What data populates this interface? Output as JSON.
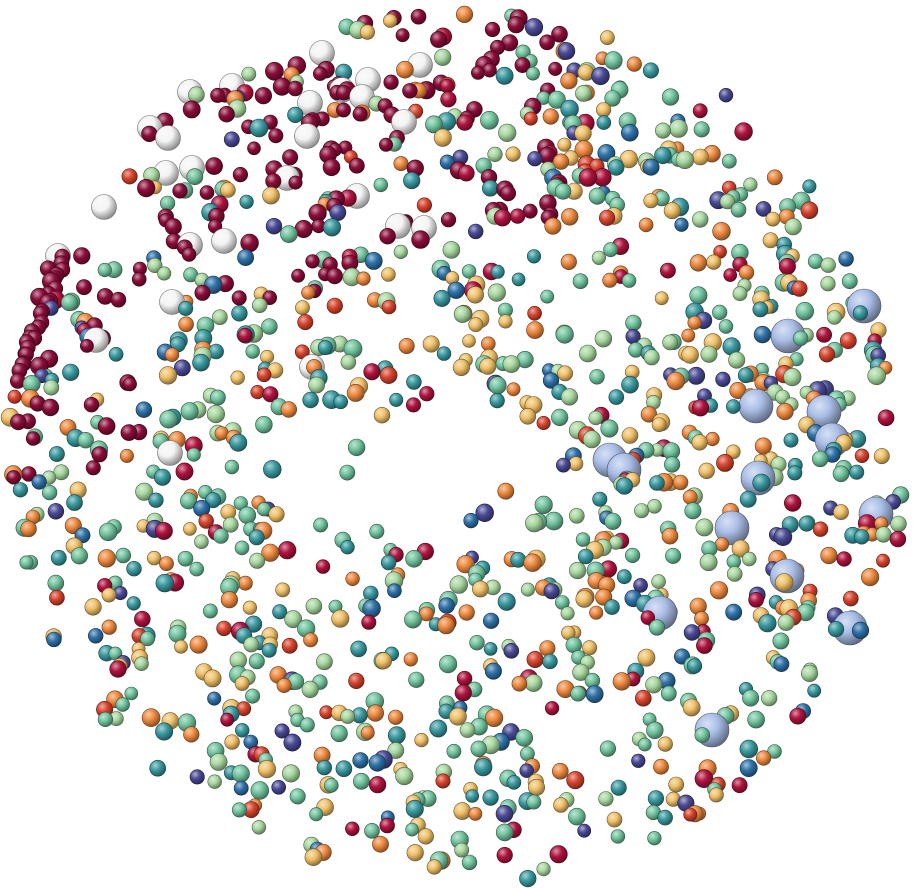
{
  "scene": {
    "background": "#ffffff",
    "palette": {
      "crimson": "#8b0d3a",
      "dark-red": "#b0133f",
      "red-orange": "#d8452e",
      "orange": "#ee8a40",
      "gold": "#f0c068",
      "pale-green": "#a8d8a0",
      "seafoam": "#72c5a0",
      "teal": "#3a9aa0",
      "steel-blue": "#2f72a8",
      "indigo": "#4a4a96",
      "white": "#f4f4f4",
      "lavender": "#a9bde6"
    }
  }
}
